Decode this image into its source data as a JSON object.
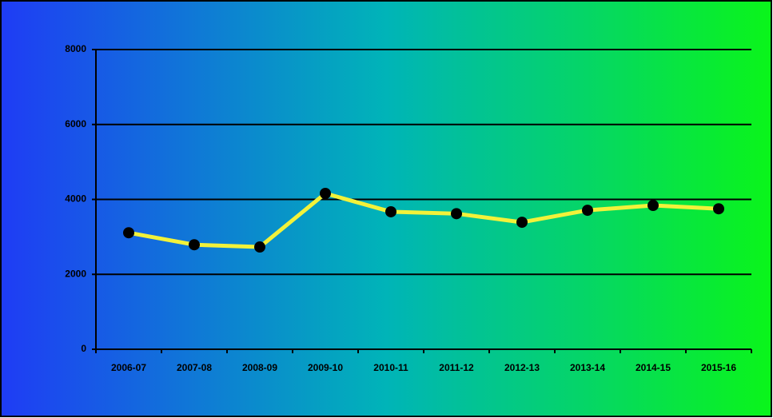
{
  "chart_data": {
    "type": "line",
    "categories": [
      "2006-07",
      "2007-08",
      "2008-09",
      "2009-10",
      "2010-11",
      "2011-12",
      "2012-13",
      "2013-14",
      "2014-15",
      "2015-16"
    ],
    "values": [
      3110,
      2790,
      2730,
      4160,
      3670,
      3620,
      3390,
      3710,
      3840,
      3750
    ],
    "color": "#f2f23a",
    "marker_color": "#000000",
    "ylim": [
      0,
      8000
    ],
    "yticks": [
      0,
      2000,
      4000,
      6000,
      8000
    ],
    "grid": true
  }
}
